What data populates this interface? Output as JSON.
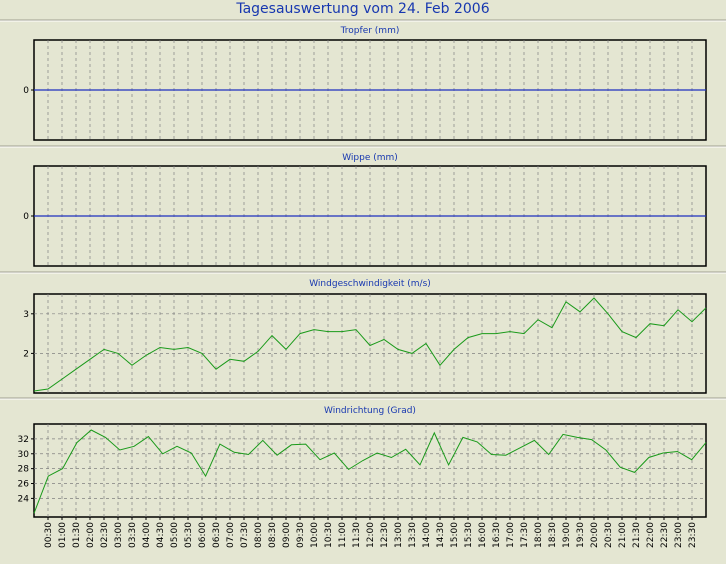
{
  "title": "Tagesauswertung vom 24. Feb 2006",
  "colors": {
    "background": "#e4e6d2",
    "title": "#1838b0",
    "zero_line": "#1f30c0",
    "series_line": "#1a9a1a",
    "grid": "#808080"
  },
  "chart_data": [
    {
      "type": "line",
      "title": "Tropfer (mm)",
      "yticks": [
        0
      ],
      "ylim": [
        -1,
        1
      ],
      "series": [
        {
          "values": [
            0
          ]
        }
      ]
    },
    {
      "type": "line",
      "title": "Wippe (mm)",
      "yticks": [
        0
      ],
      "ylim": [
        -1,
        1
      ],
      "series": [
        {
          "values": [
            0
          ]
        }
      ]
    },
    {
      "type": "line",
      "title": "Windgeschwindigkeit (m/s)",
      "yticks": [
        2,
        3
      ],
      "ylim": [
        1,
        3.5
      ],
      "series": [
        {
          "values": [
            1.05,
            1.1,
            1.35,
            1.6,
            1.85,
            2.1,
            2.0,
            1.7,
            1.95,
            2.15,
            2.1,
            2.15,
            2.0,
            1.6,
            1.85,
            1.8,
            2.05,
            2.45,
            2.1,
            2.5,
            2.6,
            2.55,
            2.55,
            2.6,
            2.2,
            2.35,
            2.1,
            2.0,
            2.25,
            1.7,
            2.1,
            2.4,
            2.5,
            2.5,
            2.55,
            2.5,
            2.85,
            2.65,
            3.3,
            3.05,
            3.4,
            3.0,
            2.55,
            2.4,
            2.75,
            2.7,
            3.1,
            2.8,
            3.15
          ]
        }
      ]
    },
    {
      "type": "line",
      "title": "Windrichtung (Grad)",
      "yticks": [
        24,
        26,
        28,
        30,
        32
      ],
      "ylim": [
        21.5,
        34
      ],
      "series": [
        {
          "values": [
            22,
            27,
            28,
            31.5,
            33.2,
            32.2,
            30.5,
            31,
            32.3,
            30,
            31,
            30.1,
            27,
            31.3,
            30.2,
            29.9,
            31.8,
            29.8,
            31.2,
            31.3,
            29.2,
            30.1,
            27.9,
            29.1,
            30.1,
            29.5,
            30.6,
            28.5,
            32.8,
            28.5,
            32.2,
            31.6,
            29.9,
            29.8,
            30.8,
            31.8,
            29.9,
            32.6,
            32.2,
            31.9,
            30.5,
            28.2,
            27.5,
            29.5,
            30.1,
            30.3,
            29.2,
            31.5
          ]
        }
      ]
    }
  ],
  "x_labels": [
    "00:30",
    "01:00",
    "01:30",
    "02:00",
    "02:30",
    "03:00",
    "03:30",
    "04:00",
    "04:30",
    "05:00",
    "05:30",
    "06:00",
    "06:30",
    "07:00",
    "07:30",
    "08:00",
    "08:30",
    "09:00",
    "09:30",
    "10:00",
    "10:30",
    "11:00",
    "11:30",
    "12:00",
    "12:30",
    "13:00",
    "13:30",
    "14:00",
    "14:30",
    "15:00",
    "15:30",
    "16:00",
    "16:30",
    "17:00",
    "17:30",
    "18:00",
    "18:30",
    "19:00",
    "19:30",
    "20:00",
    "20:30",
    "21:00",
    "21:30",
    "22:00",
    "22:30",
    "23:00",
    "23:30"
  ]
}
